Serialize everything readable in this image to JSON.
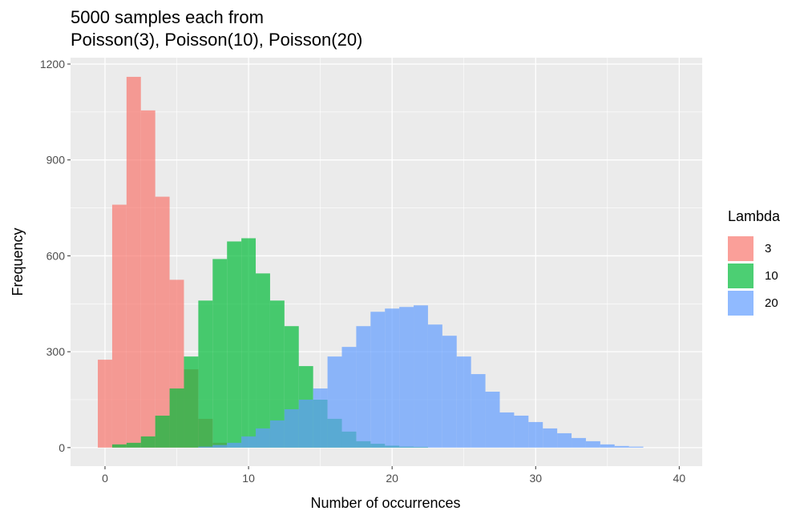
{
  "chart_data": {
    "type": "bar",
    "title": "5000 samples each from",
    "subtitle": "Poisson(3), Poisson(10), Poisson(20)",
    "xlabel": "Number of occurrences",
    "ylabel": "Frequency",
    "xlim": [
      -2.4,
      41.6
    ],
    "ylim": [
      -58,
      1220
    ],
    "x_ticks": [
      0,
      10,
      20,
      30,
      40
    ],
    "y_ticks": [
      0,
      300,
      600,
      900,
      1200
    ],
    "bin_width": 1,
    "grid": true,
    "legend_position": "right",
    "legend_title": "Lambda",
    "series": [
      {
        "name": "3",
        "color": "#F8766D",
        "x": [
          0,
          1,
          2,
          3,
          4,
          5,
          6,
          7,
          8
        ],
        "values": [
          275,
          760,
          1160,
          1055,
          785,
          525,
          245,
          90,
          15
        ]
      },
      {
        "name": "10",
        "color": "#00BA38",
        "x": [
          1,
          2,
          3,
          4,
          5,
          6,
          7,
          8,
          9,
          10,
          11,
          12,
          13,
          14,
          15,
          16,
          17,
          18,
          19,
          20,
          21,
          22
        ],
        "values": [
          10,
          15,
          35,
          100,
          185,
          285,
          460,
          590,
          645,
          655,
          545,
          460,
          380,
          255,
          150,
          90,
          50,
          20,
          12,
          6,
          3,
          2
        ]
      },
      {
        "name": "20",
        "color": "#619CFF",
        "x": [
          7,
          8,
          9,
          10,
          11,
          12,
          13,
          14,
          15,
          16,
          17,
          18,
          19,
          20,
          21,
          22,
          23,
          24,
          25,
          26,
          27,
          28,
          29,
          30,
          31,
          32,
          33,
          34,
          35,
          36,
          37
        ],
        "values": [
          3,
          8,
          15,
          35,
          60,
          85,
          120,
          150,
          185,
          285,
          315,
          380,
          425,
          435,
          440,
          445,
          385,
          350,
          285,
          230,
          175,
          110,
          100,
          80,
          60,
          45,
          30,
          20,
          10,
          5,
          3
        ]
      }
    ]
  }
}
